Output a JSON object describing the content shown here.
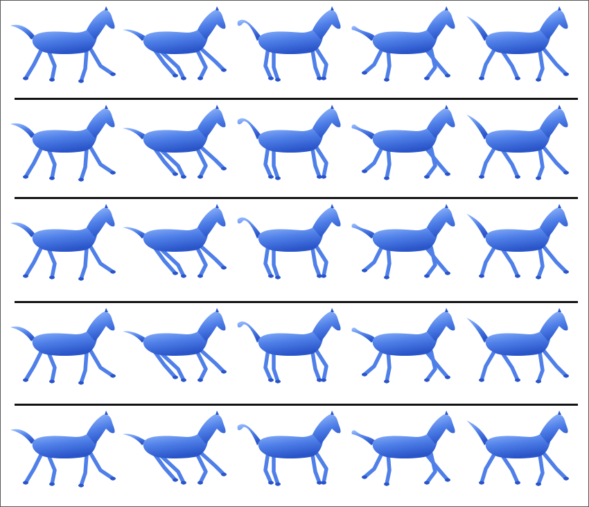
{
  "figure": {
    "rows": 5,
    "columns": 5,
    "horse_color": "#4f7fe8",
    "horse_highlight": "#9cc0ff",
    "horse_shadow": "#2a55c9",
    "separator_color": "#111111",
    "background_color": "#ffffff",
    "subject_icon": "horse-icon"
  }
}
